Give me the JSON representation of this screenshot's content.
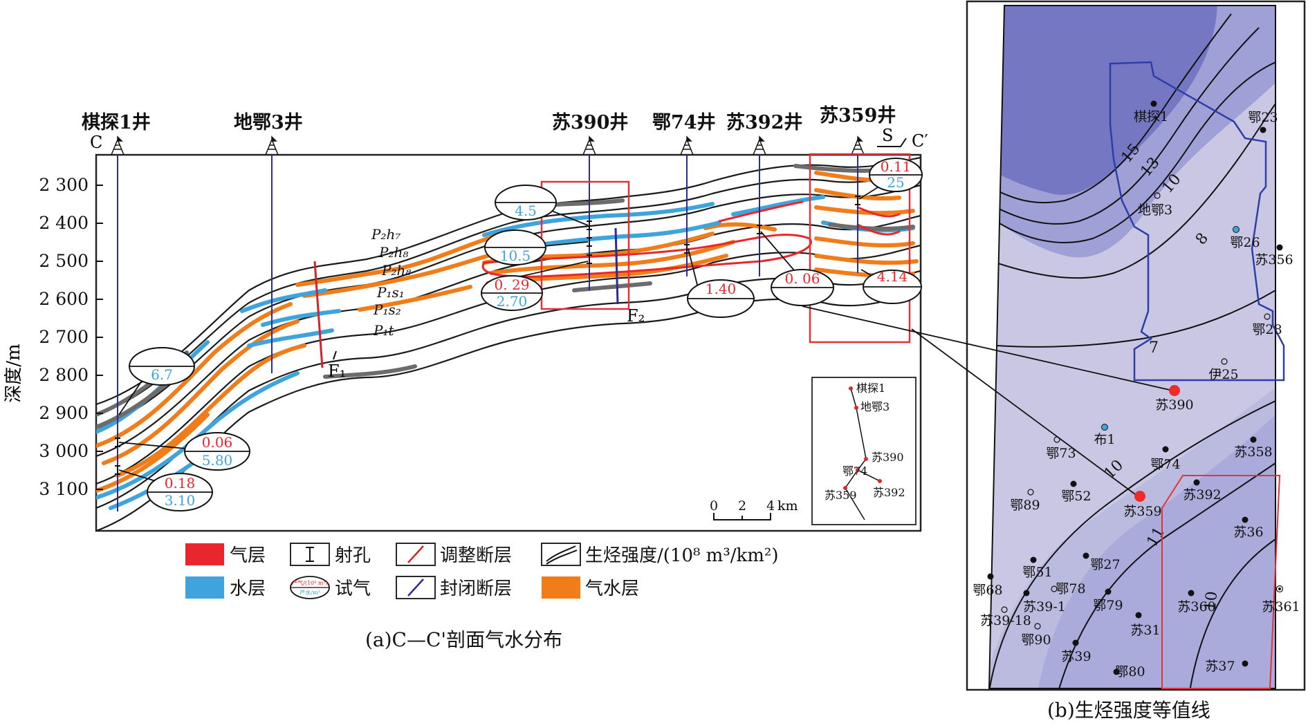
{
  "panel_a": {
    "caption": "(a)C—C'剖面气水分布",
    "c_label": "C",
    "c_prime_label": "C′",
    "s_label": "S",
    "wells": [
      {
        "name": "棋探1井"
      },
      {
        "name": "地鄂3井"
      },
      {
        "name": "苏390井"
      },
      {
        "name": "鄂74井"
      },
      {
        "name": "苏392井"
      },
      {
        "name": "苏359井"
      }
    ],
    "depth_axis": {
      "label": "深度/m",
      "ticks": [
        "2 300",
        "2 400",
        "2 500",
        "2 600",
        "2 700",
        "2 800",
        "2 900",
        "3 000",
        "3 100"
      ]
    },
    "formations": [
      "P₂h₇",
      "P₂h₈",
      "P₂h₈",
      "P₁s₁",
      "P₁s₂",
      "P₁t"
    ],
    "faults": [
      "F₁",
      "F₂"
    ],
    "tests": [
      {
        "top": "",
        "bottom": "6.7"
      },
      {
        "top": "0.06",
        "bottom": "5.80"
      },
      {
        "top": "0.18",
        "bottom": "3.10"
      },
      {
        "top": "",
        "bottom": "4.5"
      },
      {
        "top": "",
        "bottom": "10.5"
      },
      {
        "top": "0. 29",
        "bottom": "2.70"
      },
      {
        "top": "1.40",
        "bottom": ""
      },
      {
        "top": "0. 06",
        "bottom": ""
      },
      {
        "top": "0.11",
        "bottom": "25"
      },
      {
        "top": "4.14",
        "bottom": ""
      }
    ],
    "inset": {
      "wells": [
        "棋探1",
        "地鄂3",
        "苏390",
        "鄂74",
        "苏359",
        "苏392"
      ],
      "scale": {
        "ticks": [
          "0",
          "2",
          "4"
        ],
        "unit": "km"
      }
    },
    "legend": [
      {
        "label": "气层",
        "color": "#e8262b"
      },
      {
        "label": "射孔",
        "symbol": "perforation"
      },
      {
        "label": "调整断层",
        "symbol": "adjusting-fault"
      },
      {
        "label": "生烃强度/(10⁸ m³/km²)",
        "symbol": "intensity"
      },
      {
        "label": "水层",
        "color": "#3fa3dc"
      },
      {
        "label": "试气",
        "symbol": "gas-test"
      },
      {
        "label": "封闭断层",
        "symbol": "sealed-fault"
      },
      {
        "label": "气水层",
        "color": "#f07d1a"
      }
    ],
    "legend_test_text": {
      "top": "产气/(10⁴ m³)",
      "bottom": "产水/m³"
    },
    "colors": {
      "gas": "#e8262b",
      "water": "#3fa3dc",
      "gas_water": "#f07d1a",
      "dry": "#6c6c6c",
      "test_red": "#e8262b",
      "test_blue": "#3fa3dc",
      "well_line": "#2b2c8f"
    }
  },
  "panel_b": {
    "caption": "(b)生烃强度等值线",
    "contours": [
      "15",
      "13",
      "10",
      "8",
      "7",
      "10",
      "11",
      "10"
    ],
    "wells": [
      "棋探1",
      "鄂23",
      "地鄂3",
      "鄂26",
      "苏356",
      "鄂28",
      "伊25",
      "苏390",
      "布1",
      "鄂73",
      "鄂74",
      "苏358",
      "鄂89",
      "鄂52",
      "苏359",
      "苏392",
      "苏36",
      "鄂27",
      "鄂51",
      "鄂68",
      "鄂78",
      "苏39-1",
      "鄂79",
      "苏360",
      "苏361",
      "苏39-18",
      "鄂90",
      "苏31",
      "苏39",
      "鄂80",
      "苏37"
    ],
    "highlight_wells": [
      "苏390",
      "苏359"
    ],
    "colors": {
      "dark": "#7677c2",
      "mid": "#9fa1d6",
      "light": "#c9c7e4",
      "boundary": "#2d3fa6",
      "box": "#e0323a",
      "highlight": "#ee2a2a"
    }
  }
}
